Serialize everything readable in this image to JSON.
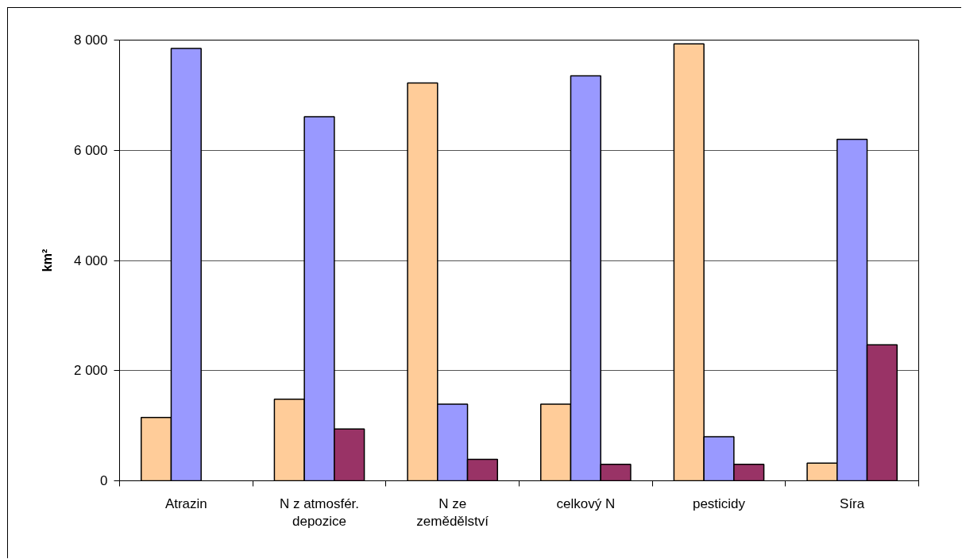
{
  "chart_data": {
    "type": "bar",
    "ylabel": "km²",
    "categories": [
      "Atrazin",
      "N z atmosfér. depozice",
      "N ze zemědělství",
      "celkový N",
      "pesticidy",
      "Síra"
    ],
    "series": [
      {
        "color": "#ffcc99",
        "values": [
          1150,
          1480,
          7220,
          1390,
          7930,
          320
        ]
      },
      {
        "color": "#9999ff",
        "values": [
          7850,
          6610,
          1390,
          7350,
          800,
          6200
        ]
      },
      {
        "color": "#993366",
        "values": [
          null,
          940,
          390,
          300,
          300,
          2470
        ]
      }
    ],
    "ylim": [
      0,
      8000
    ],
    "yticks": [
      {
        "value": 0,
        "label": "0"
      },
      {
        "value": 2000,
        "label": "2 000"
      },
      {
        "value": 4000,
        "label": "4 000"
      },
      {
        "value": 6000,
        "label": "6 000"
      },
      {
        "value": 8000,
        "label": "8 000"
      }
    ],
    "grid": "y"
  }
}
